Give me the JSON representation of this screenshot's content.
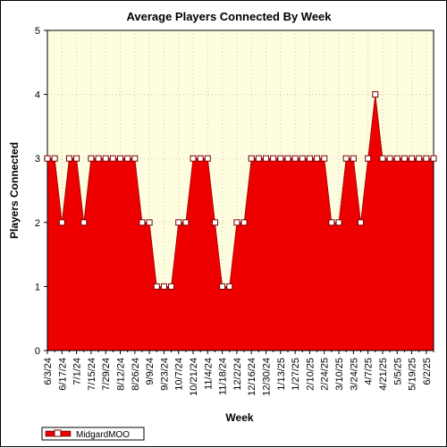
{
  "chart_data": {
    "type": "area",
    "title": "Average Players Connected By Week",
    "xlabel": "Week",
    "ylabel": "Players Connected",
    "ylim": [
      0,
      5
    ],
    "yticks": [
      0,
      1,
      2,
      3,
      4,
      5
    ],
    "grid": true,
    "legend_position": "bottom-left",
    "x_tick_labels": [
      "6/3/24",
      "6/17/24",
      "7/1/24",
      "7/15/24",
      "7/29/24",
      "8/12/24",
      "8/26/24",
      "9/9/24",
      "9/23/24",
      "10/7/24",
      "10/21/24",
      "11/4/24",
      "11/18/24",
      "12/2/24",
      "12/16/24",
      "12/30/24",
      "1/13/25",
      "1/27/25",
      "2/10/25",
      "2/24/25",
      "3/10/25",
      "3/24/25",
      "4/7/25",
      "4/21/25",
      "5/5/25",
      "5/19/25",
      "6/2/25"
    ],
    "x_tick_every": 2,
    "series": [
      {
        "name": "MidgardMOO",
        "values": [
          3,
          3,
          2,
          3,
          3,
          2,
          3,
          3,
          3,
          3,
          3,
          3,
          3,
          2,
          2,
          1,
          1,
          1,
          2,
          2,
          3,
          3,
          3,
          2,
          1,
          1,
          2,
          2,
          3,
          3,
          3,
          3,
          3,
          3,
          3,
          3,
          3,
          3,
          3,
          2,
          2,
          3,
          3,
          2,
          3,
          4,
          3,
          3,
          3,
          3,
          3,
          3,
          3,
          3
        ]
      }
    ],
    "colors": {
      "area_fill": "#ee0000",
      "plot_background": "#fffde0",
      "grid": "#c8c8a0",
      "marker_fill": "#ffffff",
      "marker_stroke": "#7a0000"
    }
  }
}
